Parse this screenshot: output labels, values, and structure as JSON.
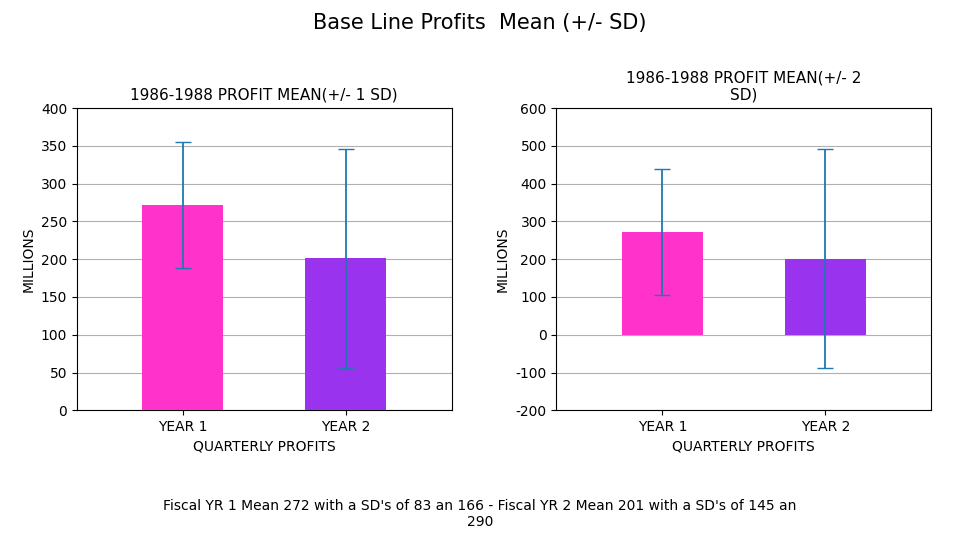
{
  "title": "Base Line Profits  Mean (+/- SD)",
  "annotations": [
    "Fiscal YR 1 Mean 272 with a SD's of 83 an 166 - Fiscal YR 2 Mean 201 with a SD's of 145 an\n290"
  ],
  "chart_data": [
    {
      "type": "bar",
      "title": "1986-1988 PROFIT MEAN(+/- 1 SD)",
      "categories": [
        "YEAR 1",
        "YEAR 2"
      ],
      "values": [
        272,
        201
      ],
      "errors": [
        83,
        145
      ],
      "colors": [
        "#ff33cc",
        "#9933ee"
      ],
      "x_label": "QUARTERLY PROFITS",
      "y_label": "MILLIONS",
      "ylim": [
        0,
        400
      ],
      "yticks": [
        0,
        50,
        100,
        150,
        200,
        250,
        300,
        350,
        400
      ],
      "grid": true
    },
    {
      "type": "bar",
      "title": "1986-1988 PROFIT MEAN(+/- 2\nSD)",
      "categories": [
        "YEAR 1",
        "YEAR 2"
      ],
      "values": [
        272,
        201
      ],
      "errors": [
        166,
        290
      ],
      "colors": [
        "#ff33cc",
        "#9933ee"
      ],
      "x_label": "QUARTERLY PROFITS",
      "y_label": "MILLIONS",
      "ylim": [
        -200,
        600
      ],
      "yticks": [
        -200,
        -100,
        0,
        100,
        200,
        300,
        400,
        500,
        600
      ],
      "grid": true
    }
  ]
}
